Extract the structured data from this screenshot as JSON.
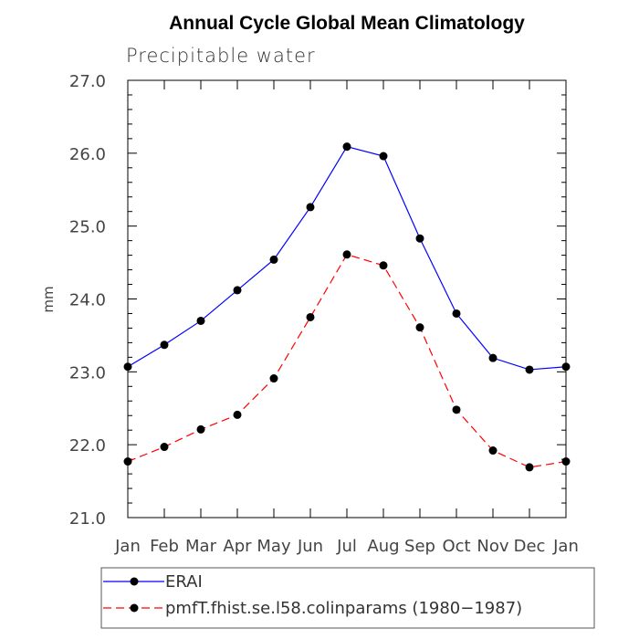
{
  "chart_data": {
    "type": "line",
    "title": "Annual Cycle Global Mean Climatology",
    "subtitle": "Precipitable water",
    "xlabel": "",
    "ylabel": "mm",
    "categories": [
      "Jan",
      "Feb",
      "Mar",
      "Apr",
      "May",
      "Jun",
      "Jul",
      "Aug",
      "Sep",
      "Oct",
      "Nov",
      "Dec",
      "Jan"
    ],
    "ylim": [
      21.0,
      27.0
    ],
    "yticks": [
      21.0,
      22.0,
      23.0,
      24.0,
      25.0,
      26.0,
      27.0
    ],
    "ytick_labels": [
      "21.0",
      "22.0",
      "23.0",
      "24.0",
      "25.0",
      "26.0",
      "27.0"
    ],
    "series": [
      {
        "name": "ERAI",
        "color": "#0000ff",
        "line_style": "solid",
        "marker": "filled-circle",
        "values": [
          23.07,
          23.37,
          23.7,
          24.12,
          24.54,
          25.26,
          26.09,
          25.96,
          24.83,
          23.8,
          23.19,
          23.03,
          23.07
        ]
      },
      {
        "name": "pmfT.fhist.se.l58.colinparams (1980−1987)",
        "color": "#ff0000",
        "line_style": "dashed",
        "marker": "filled-circle",
        "values": [
          21.77,
          21.97,
          22.21,
          22.41,
          22.91,
          23.75,
          24.61,
          24.46,
          23.61,
          22.48,
          21.92,
          21.69,
          21.77
        ]
      }
    ],
    "legend_position": "bottom"
  }
}
